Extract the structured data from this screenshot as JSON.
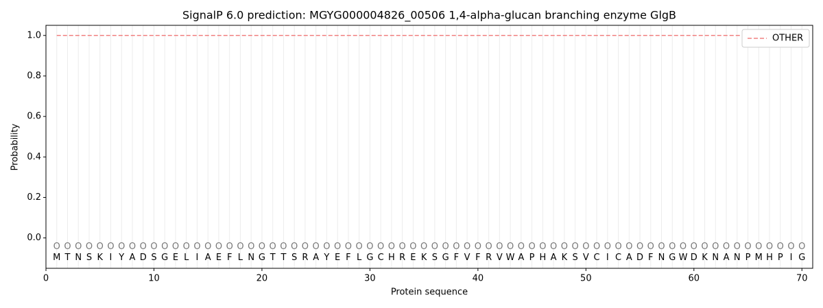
{
  "chart_data": {
    "type": "line",
    "title": "SignalP 6.0 prediction: MGYG000004826_00506 1,4-alpha-glucan branching enzyme GlgB",
    "xlabel": "Protein sequence",
    "ylabel": "Probability",
    "x": [
      1,
      2,
      3,
      4,
      5,
      6,
      7,
      8,
      9,
      10,
      11,
      12,
      13,
      14,
      15,
      16,
      17,
      18,
      19,
      20,
      21,
      22,
      23,
      24,
      25,
      26,
      27,
      28,
      29,
      30,
      31,
      32,
      33,
      34,
      35,
      36,
      37,
      38,
      39,
      40,
      41,
      42,
      43,
      44,
      45,
      46,
      47,
      48,
      49,
      50,
      51,
      52,
      53,
      54,
      55,
      56,
      57,
      58,
      59,
      60,
      61,
      62,
      63,
      64,
      65,
      66,
      67,
      68,
      69,
      70
    ],
    "sequence": [
      "M",
      "T",
      "N",
      "S",
      "K",
      "I",
      "Y",
      "A",
      "D",
      "S",
      "G",
      "E",
      "L",
      "I",
      "A",
      "E",
      "F",
      "L",
      "N",
      "G",
      "T",
      "T",
      "S",
      "R",
      "A",
      "Y",
      "E",
      "F",
      "L",
      "G",
      "C",
      "H",
      "R",
      "E",
      "K",
      "S",
      "G",
      "F",
      "V",
      "F",
      "R",
      "V",
      "W",
      "A",
      "P",
      "H",
      "A",
      "K",
      "S",
      "V",
      "C",
      "I",
      "C",
      "A",
      "D",
      "F",
      "N",
      "G",
      "W",
      "D",
      "K",
      "N",
      "A",
      "N",
      "P",
      "M",
      "H",
      "P",
      "I",
      "G"
    ],
    "states": [
      "O",
      "O",
      "O",
      "O",
      "O",
      "O",
      "O",
      "O",
      "O",
      "O",
      "O",
      "O",
      "O",
      "O",
      "O",
      "O",
      "O",
      "O",
      "O",
      "O",
      "O",
      "O",
      "O",
      "O",
      "O",
      "O",
      "O",
      "O",
      "O",
      "O",
      "O",
      "O",
      "O",
      "O",
      "O",
      "O",
      "O",
      "O",
      "O",
      "O",
      "O",
      "O",
      "O",
      "O",
      "O",
      "O",
      "O",
      "O",
      "O",
      "O",
      "O",
      "O",
      "O",
      "O",
      "O",
      "O",
      "O",
      "O",
      "O",
      "O",
      "O",
      "O",
      "O",
      "O",
      "O",
      "O",
      "O",
      "O",
      "O",
      "O"
    ],
    "series": [
      {
        "name": "OTHER",
        "color": "#f08080",
        "dash": true,
        "values": [
          1,
          1,
          1,
          1,
          1,
          1,
          1,
          1,
          1,
          1,
          1,
          1,
          1,
          1,
          1,
          1,
          1,
          1,
          1,
          1,
          1,
          1,
          1,
          1,
          1,
          1,
          1,
          1,
          1,
          1,
          1,
          1,
          1,
          1,
          1,
          1,
          1,
          1,
          1,
          1,
          1,
          1,
          1,
          1,
          1,
          1,
          1,
          1,
          1,
          1,
          1,
          1,
          1,
          1,
          1,
          1,
          1,
          1,
          1,
          1,
          1,
          1,
          1,
          1,
          1,
          1,
          1,
          1,
          1,
          1
        ]
      }
    ],
    "xlim": [
      0,
      71
    ],
    "xticks": [
      0,
      10,
      20,
      30,
      40,
      50,
      60,
      70
    ],
    "ylim": [
      -0.15,
      1.05
    ],
    "yticks": [
      {
        "value": 0,
        "label": "0.0"
      },
      0.2,
      0.4,
      0.6,
      0.8,
      {
        "value": 1,
        "label": "1.0"
      }
    ],
    "grid": true,
    "legend": "upper right"
  }
}
